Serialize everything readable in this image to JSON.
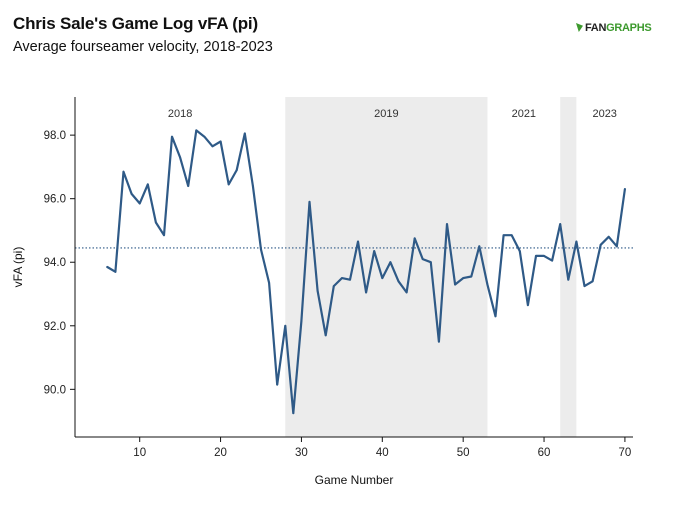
{
  "header": {
    "title": "Chris Sale's Game Log vFA (pi)",
    "subtitle": "Average fourseamer velocity, 2018-2023",
    "logo_prefix": "",
    "logo_fan": "FAN",
    "logo_graphs": "GRAPHS"
  },
  "colors": {
    "line": "#2f5a87",
    "shade": "#ececec",
    "mean": "#2f5a87",
    "logo": "#3d9a2e"
  },
  "chart_data": {
    "type": "line",
    "title": "Chris Sale's Game Log vFA (pi)",
    "subtitle": "Average fourseamer velocity, 2018-2023",
    "xlabel": "Game Number",
    "ylabel": "vFA (pi)",
    "xlim": [
      2,
      71
    ],
    "ylim": [
      88.5,
      99.2
    ],
    "xticks": [
      10,
      20,
      30,
      40,
      50,
      60,
      70
    ],
    "yticks": [
      90.0,
      92.0,
      94.0,
      96.0,
      98.0
    ],
    "ytick_labels": [
      "90.0",
      "92.0",
      "94.0",
      "96.0",
      "98.0"
    ],
    "reference_line": {
      "y": 94.45,
      "style": "dotted"
    },
    "seasons": [
      {
        "label": "2018",
        "start": 2,
        "end": 28,
        "shaded": false
      },
      {
        "label": "2019",
        "start": 28,
        "end": 53,
        "shaded": true
      },
      {
        "label": "2021",
        "start": 53,
        "end": 62,
        "shaded": false
      },
      {
        "label": "",
        "start": 62,
        "end": 64,
        "shaded": true
      },
      {
        "label": "2023",
        "start": 64,
        "end": 71,
        "shaded": false
      }
    ],
    "series": [
      {
        "x": [
          6,
          7,
          8,
          9,
          10,
          11,
          12,
          13,
          14,
          15,
          16,
          17,
          18,
          19,
          20,
          21,
          22,
          23,
          24,
          25,
          26,
          27,
          28,
          29,
          30,
          31,
          32,
          33,
          34,
          35,
          36,
          37,
          38,
          39,
          40,
          41,
          42,
          43,
          44,
          45,
          46,
          47,
          48,
          49,
          50,
          51,
          52,
          53,
          54,
          55,
          56,
          57,
          58,
          59,
          60,
          61,
          62,
          63,
          64,
          65,
          66,
          67,
          68,
          69,
          70
        ],
        "y": [
          93.85,
          93.7,
          96.85,
          96.15,
          95.85,
          96.45,
          95.25,
          94.85,
          97.95,
          97.3,
          96.4,
          98.15,
          97.95,
          97.65,
          97.8,
          96.45,
          96.9,
          98.05,
          96.4,
          94.4,
          93.35,
          90.15,
          92.0,
          89.25,
          92.15,
          95.9,
          93.1,
          91.7,
          93.25,
          93.5,
          93.45,
          94.65,
          93.05,
          94.35,
          93.5,
          94.0,
          93.4,
          93.05,
          94.75,
          94.1,
          94.0,
          91.5,
          95.2,
          93.3,
          93.5,
          93.55,
          94.5,
          93.3,
          92.3,
          94.85,
          94.85,
          94.35,
          92.65,
          94.2,
          94.2,
          94.05,
          95.2,
          93.45,
          94.65,
          93.25,
          93.4,
          94.55,
          94.8,
          94.5,
          96.3
        ]
      }
    ]
  }
}
